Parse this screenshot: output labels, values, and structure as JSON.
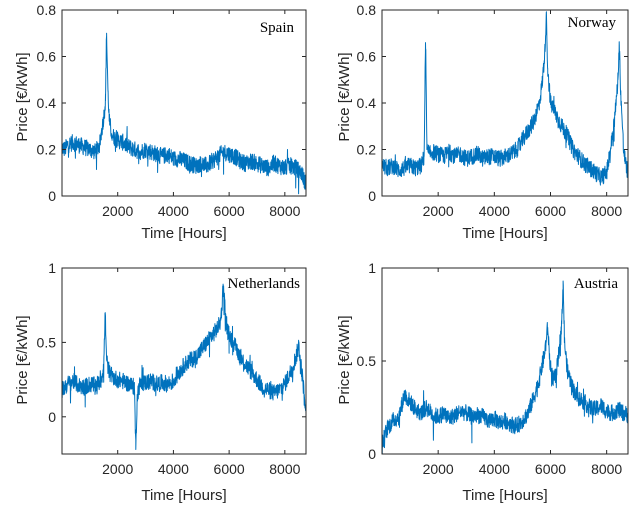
{
  "chart_data": [
    {
      "type": "line",
      "title": "Spain",
      "xlabel": "Time [Hours]",
      "ylabel": "Price [€/kWh]",
      "xlim": [
        0,
        8760
      ],
      "ylim": [
        0,
        0.8
      ],
      "xticks": [
        2000,
        4000,
        6000,
        8000
      ],
      "xtick_labels": [
        "2000",
        "4000",
        "6000",
        "8000"
      ],
      "yticks": [
        0,
        0.2,
        0.4,
        0.6,
        0.8
      ],
      "ytick_labels": [
        "0",
        "0.2",
        "0.4",
        "0.6",
        "0.8"
      ],
      "color": "#0072BD",
      "series": [
        {
          "x": [
            0,
            100,
            200,
            400,
            600,
            800,
            1000,
            1200,
            1350,
            1450,
            1520,
            1560,
            1600,
            1650,
            1700,
            1800,
            1900,
            2000,
            2200,
            2400,
            2600,
            2800,
            3000,
            3200,
            3400,
            3600,
            3800,
            4000,
            4200,
            4400,
            4600,
            4800,
            5000,
            5200,
            5400,
            5600,
            5800,
            6000,
            6200,
            6400,
            6600,
            6800,
            7000,
            7200,
            7400,
            7600,
            7800,
            8000,
            8200,
            8400,
            8600,
            8760
          ],
          "y": [
            0.21,
            0.2,
            0.22,
            0.23,
            0.22,
            0.21,
            0.2,
            0.19,
            0.22,
            0.3,
            0.36,
            0.41,
            0.7,
            0.45,
            0.32,
            0.26,
            0.25,
            0.24,
            0.23,
            0.21,
            0.2,
            0.19,
            0.2,
            0.19,
            0.18,
            0.17,
            0.18,
            0.16,
            0.16,
            0.15,
            0.14,
            0.13,
            0.14,
            0.13,
            0.15,
            0.17,
            0.19,
            0.18,
            0.17,
            0.15,
            0.14,
            0.15,
            0.14,
            0.13,
            0.12,
            0.14,
            0.13,
            0.12,
            0.13,
            0.12,
            0.1,
            0.05
          ]
        }
      ]
    },
    {
      "type": "line",
      "title": "Norway",
      "xlabel": "Time [Hours]",
      "ylabel": "Price [€/kWh]",
      "xlim": [
        0,
        8760
      ],
      "ylim": [
        0,
        0.8
      ],
      "xticks": [
        2000,
        4000,
        6000,
        8000
      ],
      "xtick_labels": [
        "2000",
        "4000",
        "6000",
        "8000"
      ],
      "yticks": [
        0,
        0.2,
        0.4,
        0.6,
        0.8
      ],
      "ytick_labels": [
        "0",
        "0.2",
        "0.4",
        "0.6",
        "0.8"
      ],
      "color": "#0072BD",
      "series": [
        {
          "x": [
            0,
            200,
            400,
            600,
            800,
            1000,
            1200,
            1400,
            1500,
            1550,
            1600,
            1700,
            1800,
            2000,
            2200,
            2400,
            2600,
            2800,
            3000,
            3200,
            3400,
            3600,
            3800,
            4000,
            4200,
            4400,
            4600,
            4800,
            5000,
            5200,
            5400,
            5600,
            5700,
            5800,
            5850,
            5900,
            6000,
            6200,
            6400,
            6600,
            6800,
            7000,
            7200,
            7400,
            7600,
            7800,
            8000,
            8200,
            8300,
            8400,
            8450,
            8500,
            8600,
            8700,
            8760
          ],
          "y": [
            0.13,
            0.12,
            0.13,
            0.11,
            0.12,
            0.13,
            0.12,
            0.13,
            0.17,
            0.66,
            0.2,
            0.18,
            0.19,
            0.18,
            0.17,
            0.19,
            0.17,
            0.18,
            0.16,
            0.17,
            0.18,
            0.16,
            0.17,
            0.17,
            0.16,
            0.17,
            0.18,
            0.2,
            0.24,
            0.28,
            0.32,
            0.4,
            0.48,
            0.62,
            0.79,
            0.55,
            0.4,
            0.35,
            0.3,
            0.26,
            0.2,
            0.17,
            0.14,
            0.12,
            0.1,
            0.08,
            0.1,
            0.25,
            0.35,
            0.5,
            0.65,
            0.45,
            0.2,
            0.12,
            0.1
          ]
        }
      ]
    },
    {
      "type": "line",
      "title": "Netherlands",
      "xlabel": "Time [Hours]",
      "ylabel": "Price [€/kWh]",
      "xlim": [
        0,
        8760
      ],
      "ylim": [
        -0.25,
        1.0
      ],
      "xticks": [
        2000,
        4000,
        6000,
        8000
      ],
      "xtick_labels": [
        "2000",
        "4000",
        "6000",
        "8000"
      ],
      "yticks": [
        0,
        0.5,
        1
      ],
      "ytick_labels": [
        "0",
        "0.5",
        "1"
      ],
      "color": "#0072BD",
      "series": [
        {
          "x": [
            0,
            200,
            400,
            600,
            800,
            1000,
            1200,
            1400,
            1500,
            1550,
            1600,
            1700,
            1800,
            2000,
            2200,
            2400,
            2600,
            2650,
            2700,
            2800,
            3000,
            3200,
            3400,
            3600,
            3800,
            4000,
            4200,
            4400,
            4600,
            4800,
            5000,
            5200,
            5400,
            5600,
            5700,
            5800,
            5900,
            6000,
            6200,
            6400,
            6600,
            6800,
            7000,
            7200,
            7400,
            7600,
            7800,
            8000,
            8200,
            8400,
            8500,
            8600,
            8700,
            8760
          ],
          "y": [
            0.18,
            0.22,
            0.24,
            0.21,
            0.2,
            0.22,
            0.21,
            0.24,
            0.35,
            0.7,
            0.38,
            0.3,
            0.27,
            0.25,
            0.24,
            0.22,
            0.2,
            -0.22,
            0.15,
            0.22,
            0.23,
            0.24,
            0.22,
            0.23,
            0.22,
            0.24,
            0.3,
            0.35,
            0.38,
            0.4,
            0.45,
            0.5,
            0.55,
            0.6,
            0.65,
            0.88,
            0.6,
            0.55,
            0.48,
            0.4,
            0.35,
            0.3,
            0.25,
            0.2,
            0.18,
            0.16,
            0.18,
            0.22,
            0.3,
            0.4,
            0.48,
            0.32,
            0.15,
            0.02
          ]
        }
      ]
    },
    {
      "type": "line",
      "title": "Austria",
      "xlabel": "Time [Hours]",
      "ylabel": "Price [€/kWh]",
      "xlim": [
        0,
        8760
      ],
      "ylim": [
        0,
        1.0
      ],
      "xticks": [
        2000,
        4000,
        6000,
        8000
      ],
      "xtick_labels": [
        "2000",
        "4000",
        "6000",
        "8000"
      ],
      "yticks": [
        0,
        0.5,
        1
      ],
      "ytick_labels": [
        "0",
        "0.5",
        "1"
      ],
      "color": "#0072BD",
      "series": [
        {
          "x": [
            0,
            100,
            200,
            400,
            600,
            800,
            1000,
            1200,
            1400,
            1600,
            1800,
            2000,
            2200,
            2400,
            2600,
            2800,
            3000,
            3200,
            3400,
            3600,
            3800,
            4000,
            4200,
            4400,
            4600,
            4800,
            5000,
            5200,
            5400,
            5600,
            5800,
            5900,
            6000,
            6100,
            6200,
            6300,
            6400,
            6450,
            6500,
            6600,
            6800,
            7000,
            7200,
            7400,
            7600,
            7800,
            8000,
            8200,
            8400,
            8600,
            8760
          ],
          "y": [
            0.05,
            0.1,
            0.14,
            0.18,
            0.2,
            0.32,
            0.28,
            0.24,
            0.22,
            0.25,
            0.21,
            0.2,
            0.22,
            0.19,
            0.21,
            0.23,
            0.22,
            0.2,
            0.21,
            0.2,
            0.18,
            0.19,
            0.17,
            0.18,
            0.16,
            0.15,
            0.18,
            0.22,
            0.3,
            0.4,
            0.55,
            0.68,
            0.45,
            0.4,
            0.42,
            0.55,
            0.7,
            0.93,
            0.6,
            0.45,
            0.35,
            0.3,
            0.28,
            0.25,
            0.24,
            0.26,
            0.23,
            0.22,
            0.24,
            0.22,
            0.21
          ]
        }
      ]
    }
  ]
}
